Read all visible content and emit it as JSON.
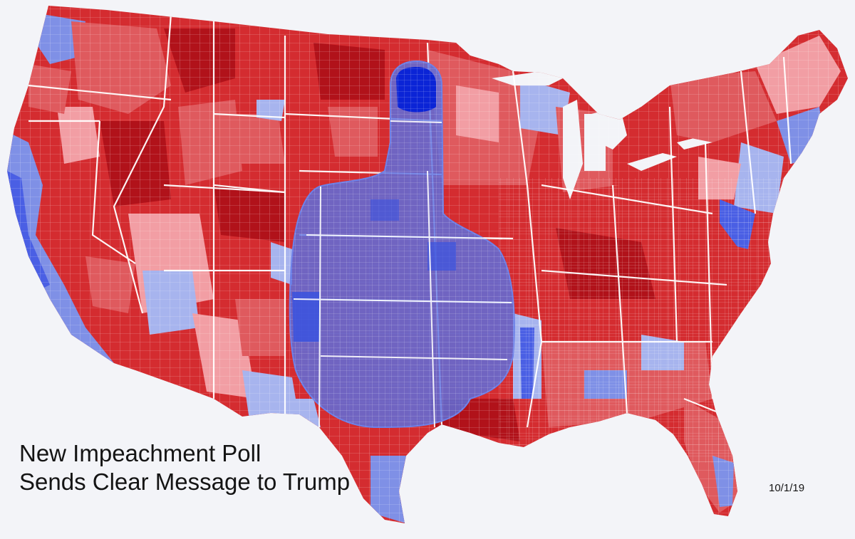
{
  "caption": {
    "line1": "New Impeachment Poll",
    "line2": "Sends Clear Message to Trump"
  },
  "date": "10/1/19",
  "colors": {
    "background": "#f3f4f8",
    "red_dark": "#b1121a",
    "red": "#d42c30",
    "red_mid": "#df5a5e",
    "red_light": "#f29ea4",
    "blue_light": "#a7b4ee",
    "blue_mid": "#7f90e6",
    "blue": "#4a5fe4",
    "blue_dark": "#0b24d6",
    "hand_overlay": "#5a70e2",
    "border": "#ffffff"
  },
  "icons": {
    "hand": "thumbs-up-hand-icon"
  }
}
